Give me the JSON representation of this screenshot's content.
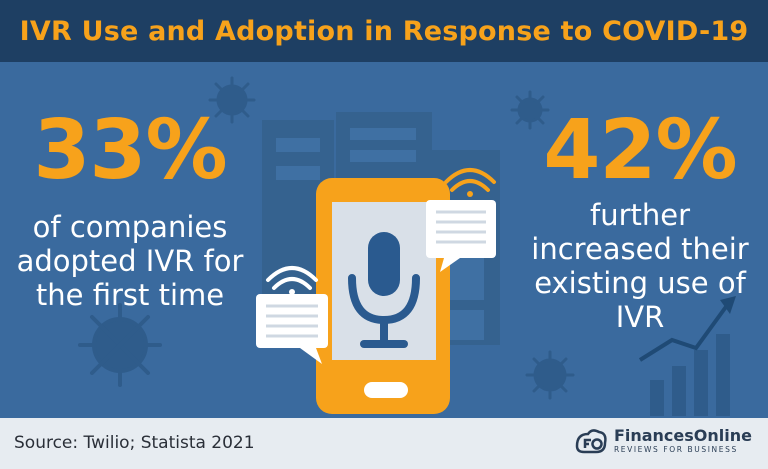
{
  "title": "IVR Use and Adoption in Response to COVID-19",
  "left_stat": {
    "value": "33%",
    "line1": "of companies",
    "line2": "adopted IVR for",
    "line3": "the first time"
  },
  "right_stat": {
    "value": "42%",
    "line1": "further",
    "line2": "increased their",
    "line3": "existing use of",
    "line4": "IVR"
  },
  "footer": {
    "source": "Source: Twilio; Statista 2021",
    "brand_name": "FinancesOnline",
    "brand_tagline": "REVIEWS FOR BUSINESS"
  },
  "icons": [
    "virus-icon",
    "building-icon",
    "smartphone-icon",
    "microphone-icon",
    "chat-bubble-icon",
    "wifi-signal-icon",
    "growth-chart-icon",
    "finances-online-logo-icon"
  ],
  "colors": {
    "header_bg": "#1e3f63",
    "main_bg": "#3a6a9e",
    "accent_orange": "#f7a21b",
    "footer_bg": "#e7ecf1"
  }
}
